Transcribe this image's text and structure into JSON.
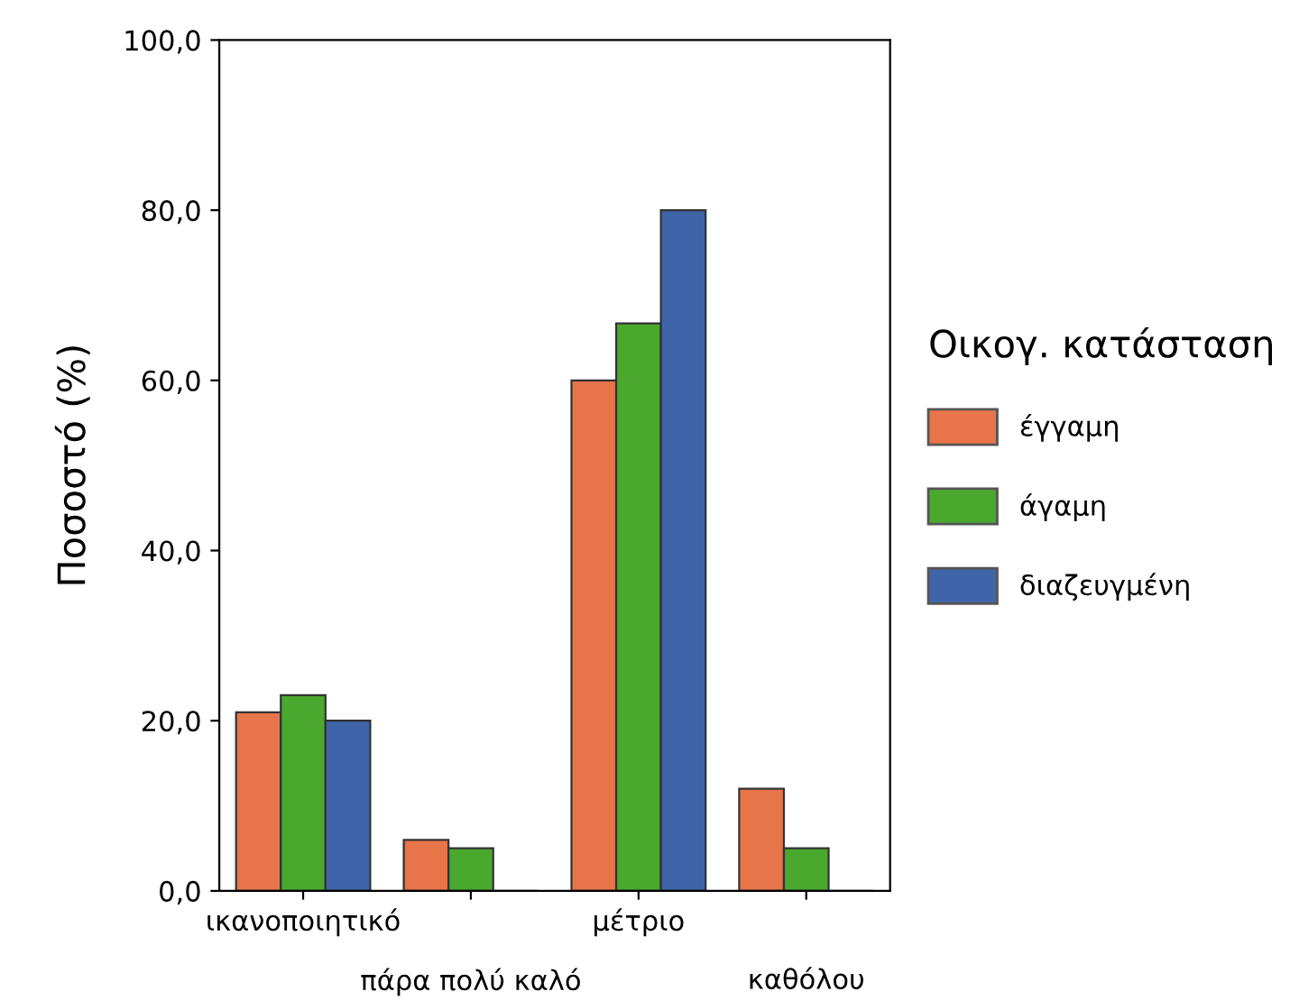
{
  "chart_data": {
    "type": "bar",
    "ylabel": "Ποσοστό (%)",
    "legend_title": "Οικογ. κατάσταση",
    "legend": "right",
    "grid": false,
    "categories": [
      "ικανοποιητικό",
      "πάρα πολύ καλό",
      "μέτριο",
      "καθόλου"
    ],
    "series": [
      {
        "name": "έγγαμη",
        "color": "#e8744a",
        "values": [
          21,
          6,
          60,
          12
        ]
      },
      {
        "name": "άγαμη",
        "color": "#4aa82e",
        "values": [
          23,
          5,
          66.7,
          5
        ]
      },
      {
        "name": "διαζευγμένη",
        "color": "#3f64a8",
        "values": [
          20,
          0,
          80,
          0
        ]
      }
    ],
    "ylim": [
      0,
      100
    ],
    "yticks": [
      {
        "value": 0,
        "label": "0,0"
      },
      {
        "value": 20,
        "label": "20,0"
      },
      {
        "value": 40,
        "label": "40,0"
      },
      {
        "value": 60,
        "label": "60,0"
      },
      {
        "value": 80,
        "label": "80,0"
      },
      {
        "value": 100,
        "label": "100,0"
      }
    ]
  }
}
